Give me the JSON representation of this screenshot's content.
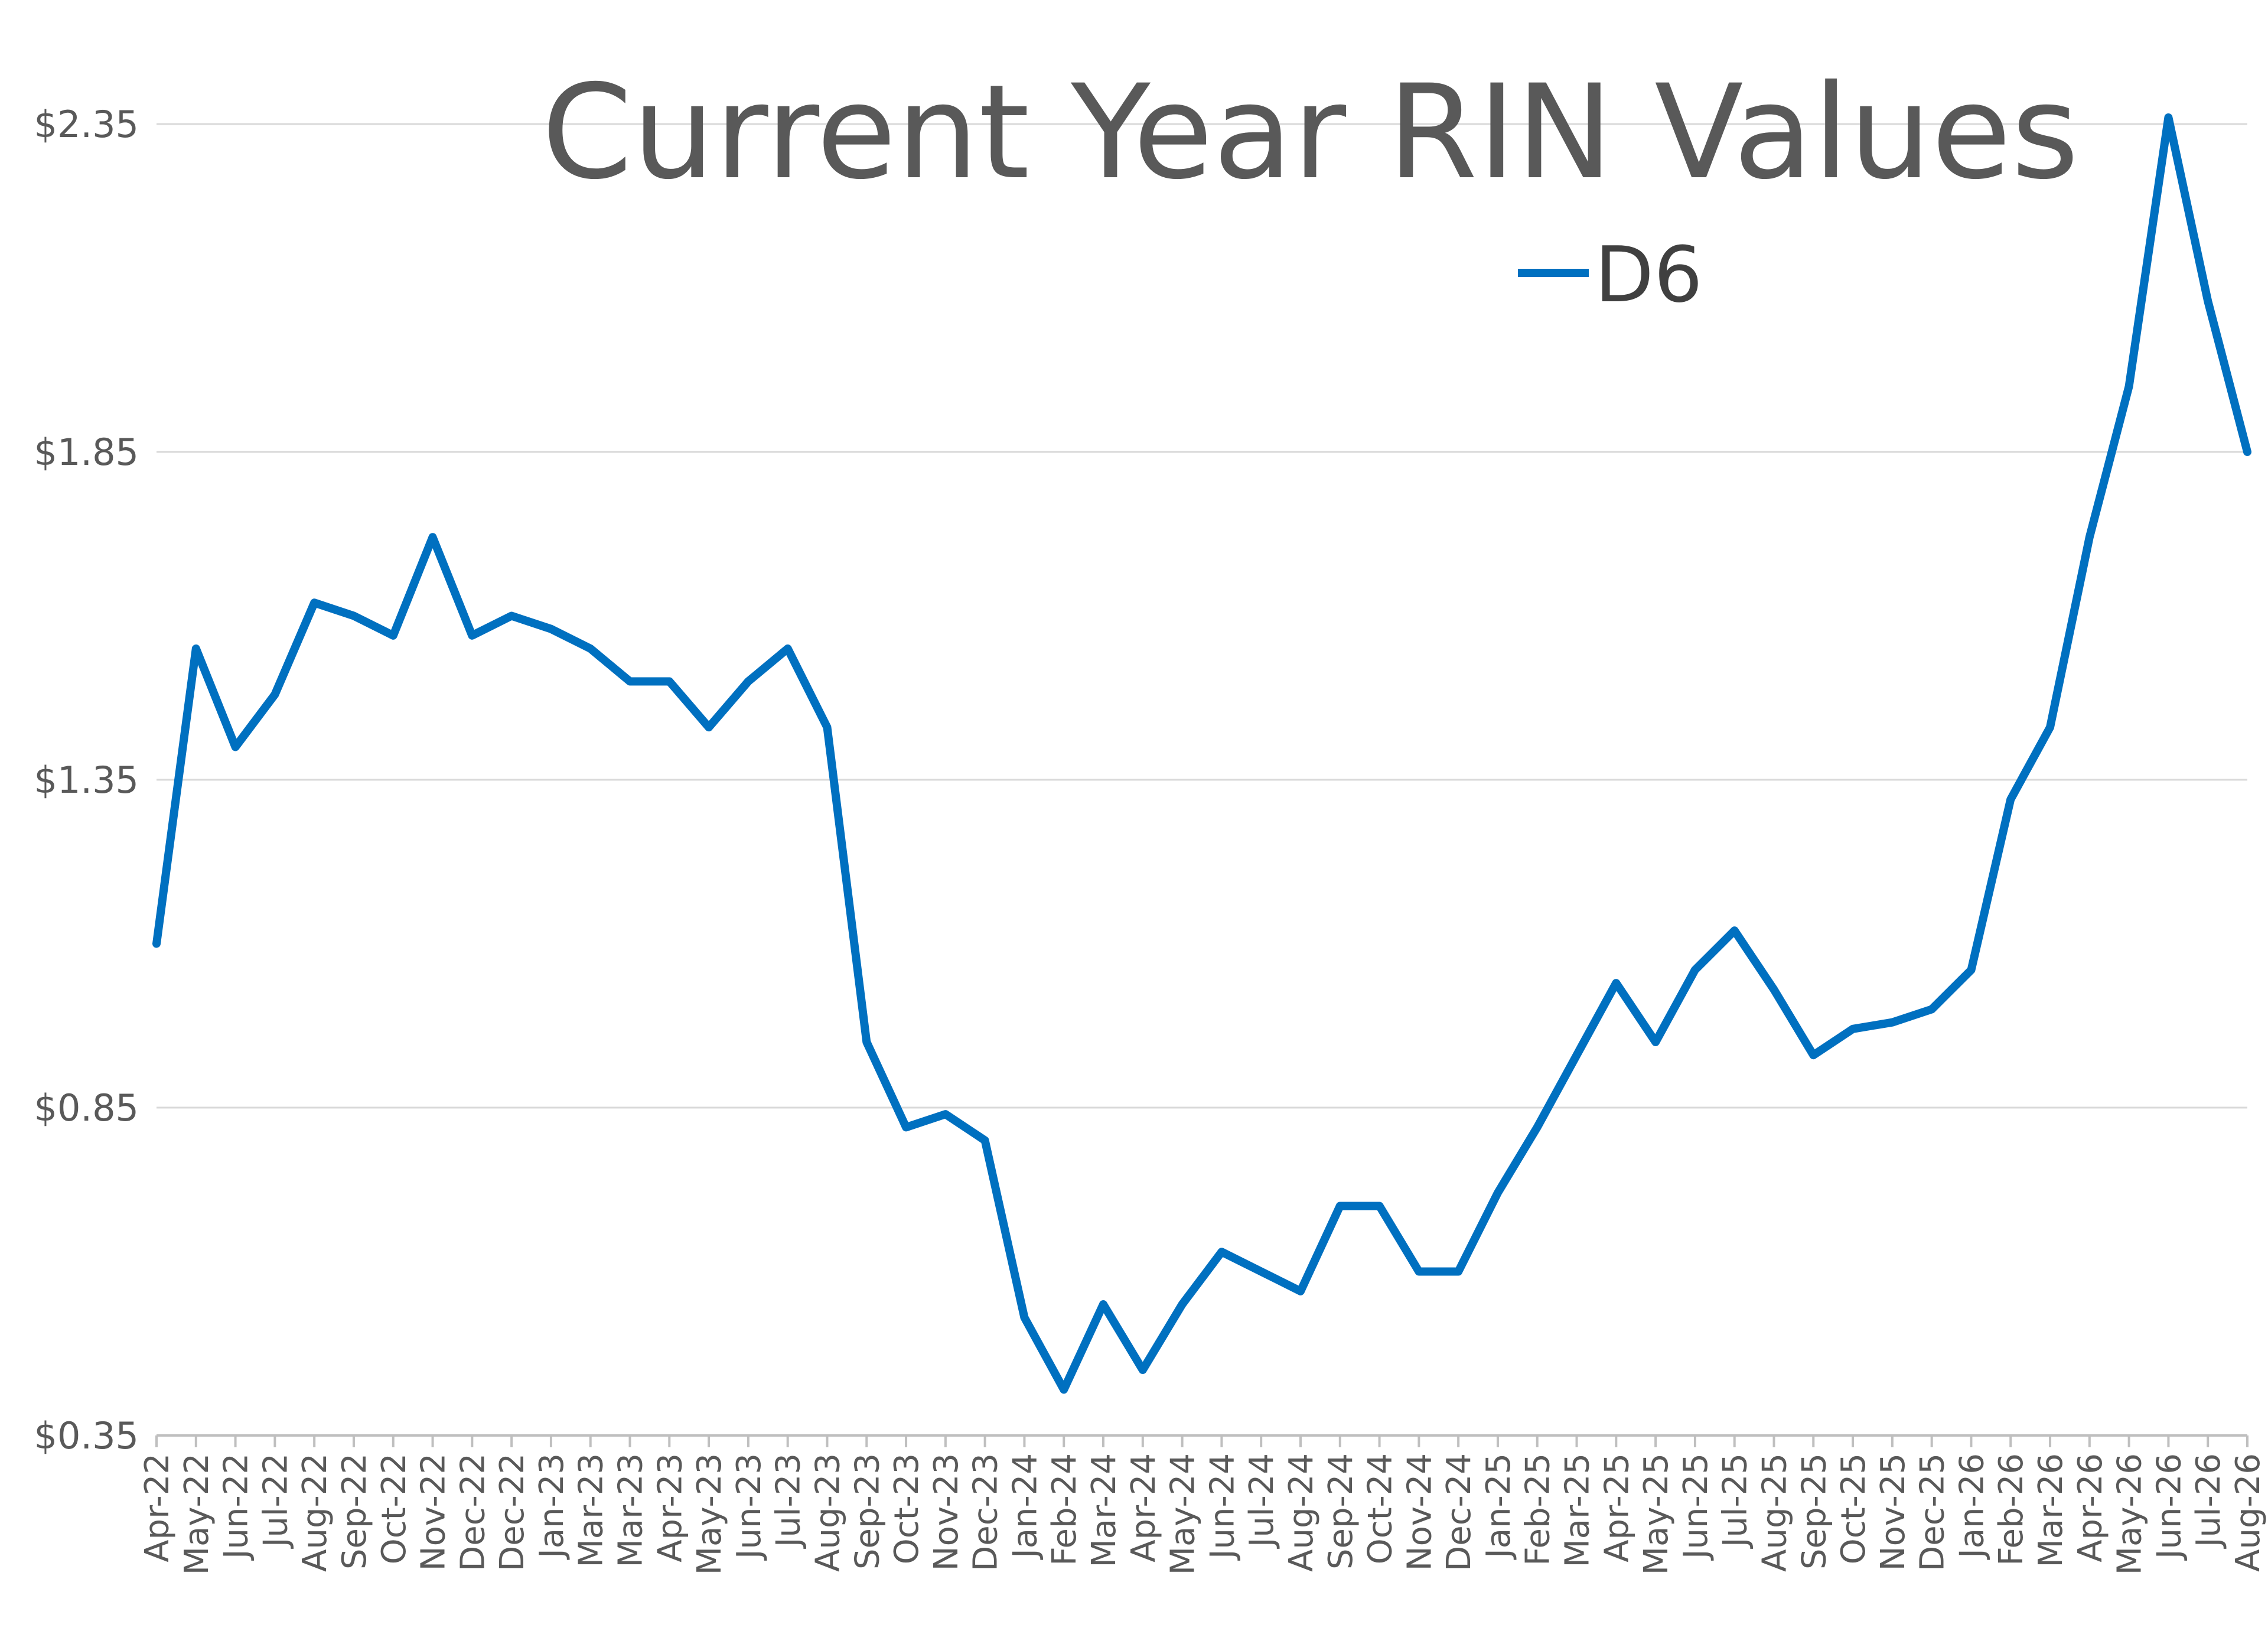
{
  "chart_data": {
    "type": "line",
    "title": "Current Year RIN Values",
    "xlabel": "",
    "ylabel": "",
    "ylim": [
      0.35,
      2.35
    ],
    "y_ticks": [
      "$0.35",
      "$0.85",
      "$1.35",
      "$1.85",
      "$2.35"
    ],
    "y_tick_values": [
      0.35,
      0.85,
      1.35,
      1.85,
      2.35
    ],
    "grid": true,
    "legend_position": "top-right",
    "categories": [
      "Apr-22",
      "May-22",
      "Jun-22",
      "Jul-22",
      "Aug-22",
      "Sep-22",
      "Oct-22",
      "Nov-22",
      "Dec-22",
      "Dec-22",
      "Jan-23",
      "Mar-23",
      "Mar-23",
      "Apr-23",
      "May-23",
      "Jun-23",
      "Jul-23",
      "Aug-23",
      "Sep-23",
      "Oct-23",
      "Nov-23",
      "Dec-23",
      "Jan-24",
      "Feb-24",
      "Mar-24",
      "Apr-24",
      "May-24",
      "Jun-24",
      "Jul-24",
      "Aug-24",
      "Sep-24",
      "Oct-24",
      "Nov-24",
      "Dec-24",
      "Jan-25",
      "Feb-25",
      "Mar-25",
      "Apr-25",
      "May-25",
      "Jun-25",
      "Jul-25",
      "Aug-25",
      "Sep-25",
      "Oct-25",
      "Nov-25",
      "Dec-25",
      "Jan-26",
      "Feb-26",
      "Mar-26",
      "Apr-26",
      "May-26",
      "Jun-26",
      "Jul-26",
      "Aug-26"
    ],
    "series": [
      {
        "name": "D6",
        "color": "#0070c0",
        "values": [
          1.1,
          1.55,
          1.4,
          1.48,
          1.62,
          1.6,
          1.57,
          1.72,
          1.57,
          1.6,
          1.58,
          1.55,
          1.5,
          1.5,
          1.43,
          1.5,
          1.55,
          1.43,
          0.95,
          0.82,
          0.84,
          0.8,
          0.53,
          0.42,
          0.55,
          0.45,
          0.55,
          0.63,
          0.6,
          0.57,
          0.7,
          0.7,
          0.6,
          0.6,
          0.72,
          0.82,
          0.93,
          1.04,
          0.95,
          1.06,
          1.12,
          1.03,
          0.93,
          0.97,
          0.98,
          1.0,
          1.06,
          1.32,
          1.43,
          1.72,
          1.95,
          2.36,
          2.08,
          1.85
        ]
      }
    ]
  }
}
